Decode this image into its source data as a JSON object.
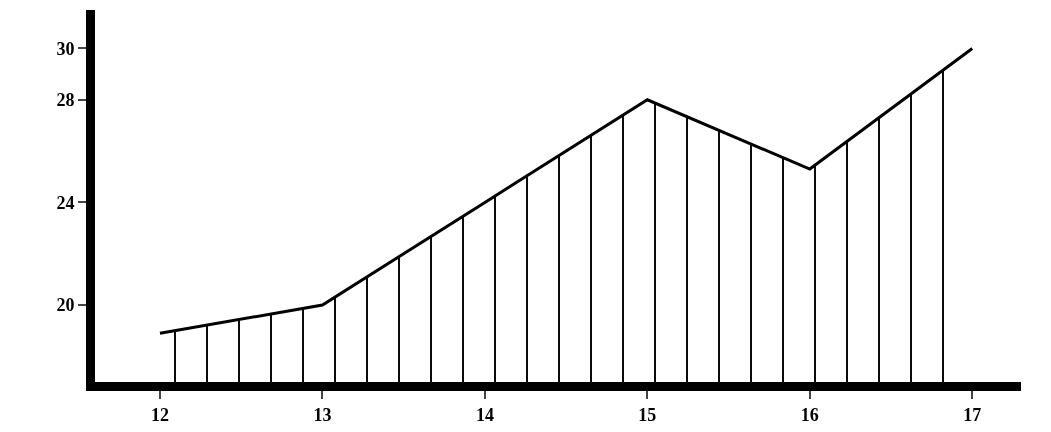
{
  "chart_data": {
    "type": "area",
    "x": [
      12,
      13,
      14,
      15,
      16,
      17
    ],
    "series": [
      {
        "color": "#000000",
        "values": [
          18.9,
          20,
          24,
          28,
          25.3,
          30
        ]
      }
    ],
    "xlim": [
      11.6,
      17.3
    ],
    "xticks": [
      12,
      13,
      14,
      15,
      16,
      17
    ],
    "ylim": [
      17,
      31.5
    ],
    "yticks": [
      20,
      24,
      28,
      30
    ],
    "marker": "none",
    "line_style": "solid"
  }
}
